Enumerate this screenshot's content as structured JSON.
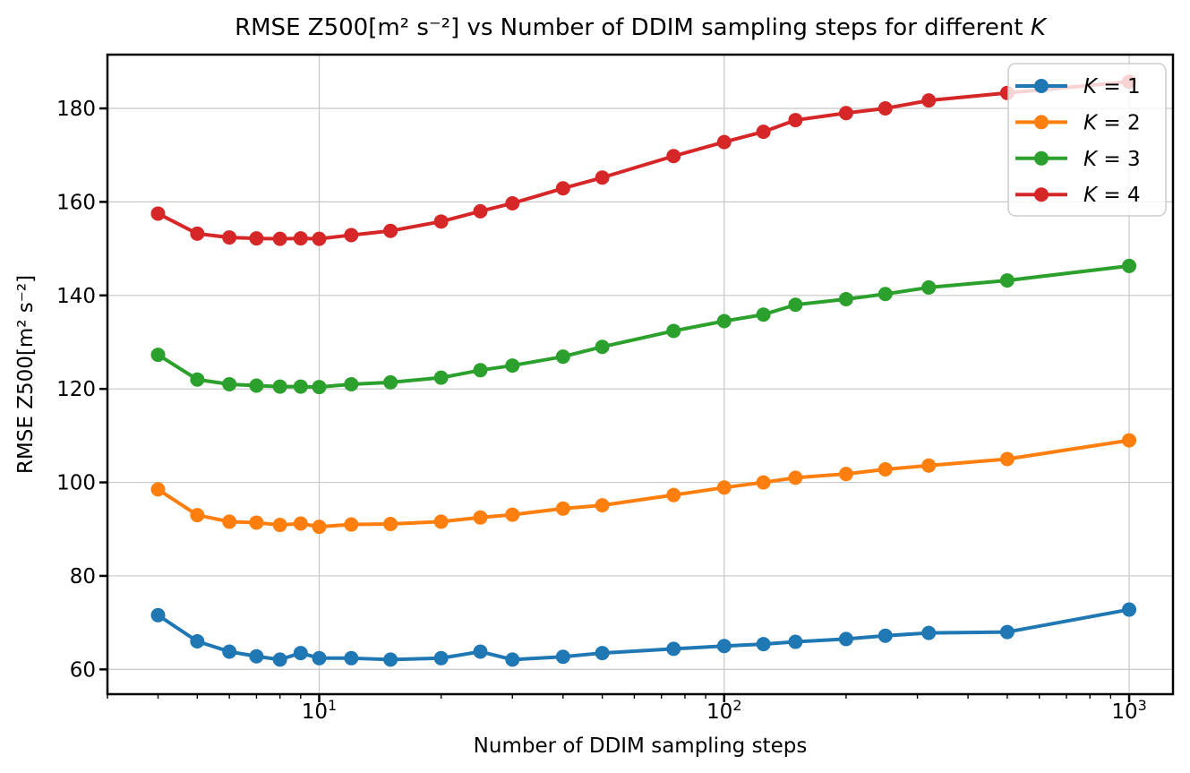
{
  "title": {
    "text": "RMSE Z500[m² s⁻²] vs Number of DDIM sampling steps for different ",
    "emph": "K"
  },
  "chart_data": {
    "type": "line",
    "title": "RMSE Z500[m² s⁻²] vs Number of DDIM sampling steps for different K",
    "xlabel": "Number of DDIM sampling steps",
    "ylabel": "RMSE Z500[m² s⁻²]",
    "x_scale": "log",
    "grid": true,
    "legend_position": "upper right",
    "xlim": [
      3.0,
      1283
    ],
    "ylim": [
      54.7,
      191.5
    ],
    "xticks": [
      10,
      100,
      1000
    ],
    "xtick_labels": [
      "10¹",
      "10²",
      "10³"
    ],
    "yticks": [
      60,
      80,
      100,
      120,
      140,
      160,
      180
    ],
    "x": [
      4,
      5,
      6,
      7,
      8,
      9,
      10,
      12,
      15,
      20,
      25,
      30,
      40,
      50,
      75,
      100,
      125,
      150,
      200,
      250,
      320,
      500,
      1000
    ],
    "series": [
      {
        "name": "K = 1",
        "color": "#1f77b4",
        "values": [
          71.6,
          66.0,
          63.8,
          62.8,
          62.1,
          63.5,
          62.4,
          62.4,
          62.1,
          62.4,
          63.8,
          62.1,
          62.7,
          63.5,
          64.4,
          65.0,
          65.4,
          65.9,
          66.5,
          67.2,
          67.8,
          68.0,
          72.8
        ]
      },
      {
        "name": "K = 2",
        "color": "#ff7f0e",
        "values": [
          98.5,
          93.0,
          91.6,
          91.4,
          90.9,
          91.2,
          90.5,
          91.0,
          91.1,
          91.6,
          92.5,
          93.1,
          94.4,
          95.1,
          97.3,
          98.9,
          100.0,
          101.0,
          101.8,
          102.8,
          103.6,
          105.0,
          109.0
        ]
      },
      {
        "name": "K = 3",
        "color": "#2ca02c",
        "values": [
          127.3,
          122.0,
          121.0,
          120.7,
          120.5,
          120.5,
          120.4,
          121.0,
          121.4,
          122.4,
          124.0,
          125.0,
          126.9,
          129.0,
          132.4,
          134.5,
          135.9,
          138.0,
          139.2,
          140.3,
          141.7,
          143.2,
          146.3
        ]
      },
      {
        "name": "K = 4",
        "color": "#d62728",
        "values": [
          157.5,
          153.2,
          152.4,
          152.2,
          152.1,
          152.2,
          152.1,
          152.9,
          153.8,
          155.8,
          158.0,
          159.7,
          162.9,
          165.2,
          169.8,
          172.8,
          175.0,
          177.5,
          179.0,
          180.0,
          181.7,
          183.3,
          185.7
        ]
      }
    ],
    "grid_color": "#c8c8c8",
    "legend_edge_color": "#cccccc"
  }
}
